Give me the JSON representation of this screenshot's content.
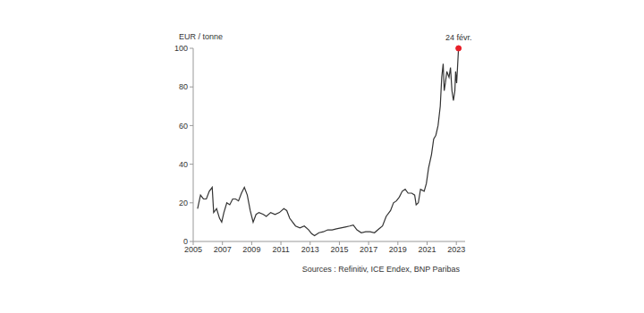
{
  "chart_data": {
    "type": "line",
    "y_label": "EUR / tonne",
    "source": "Sources : Refinitiv, ICE Endex, BNP Paribas",
    "color": "#333333",
    "grid": false,
    "xlim": [
      2005,
      2023.6
    ],
    "xticks": [
      2005,
      2007,
      2009,
      2011,
      2013,
      2015,
      2017,
      2019,
      2021,
      2023
    ],
    "ylim": [
      0,
      100
    ],
    "yticks": [
      0,
      20,
      40,
      60,
      80,
      100
    ],
    "x": [
      2005.3,
      2005.5,
      2005.7,
      2005.9,
      2006.1,
      2006.3,
      2006.4,
      2006.6,
      2006.8,
      2006.95,
      2007.1,
      2007.3,
      2007.5,
      2007.7,
      2007.9,
      2008.1,
      2008.3,
      2008.5,
      2008.7,
      2008.9,
      2009.1,
      2009.3,
      2009.5,
      2009.8,
      2010.0,
      2010.3,
      2010.6,
      2010.9,
      2011.2,
      2011.4,
      2011.6,
      2011.8,
      2012.0,
      2012.3,
      2012.6,
      2012.9,
      2013.1,
      2013.3,
      2013.6,
      2013.9,
      2014.2,
      2014.5,
      2014.8,
      2015.1,
      2015.4,
      2015.7,
      2015.95,
      2016.2,
      2016.5,
      2016.8,
      2017.1,
      2017.4,
      2017.7,
      2017.95,
      2018.2,
      2018.5,
      2018.7,
      2018.9,
      2019.1,
      2019.3,
      2019.5,
      2019.7,
      2019.95,
      2020.15,
      2020.25,
      2020.4,
      2020.55,
      2020.8,
      2020.95,
      2021.1,
      2021.3,
      2021.45,
      2021.6,
      2021.75,
      2021.9,
      2022.0,
      2022.1,
      2022.17,
      2022.25,
      2022.35,
      2022.5,
      2022.6,
      2022.7,
      2022.8,
      2022.9,
      2022.95,
      2023.02,
      2023.08,
      2023.15
    ],
    "values": [
      17,
      24,
      22,
      22,
      26,
      28,
      15,
      17,
      12,
      10,
      15,
      20,
      19,
      22,
      22,
      21,
      25,
      28,
      24,
      16,
      10,
      14,
      15,
      14,
      13,
      15,
      14,
      15,
      17,
      16,
      12,
      10,
      8,
      7,
      8,
      6,
      4,
      3,
      4.5,
      5,
      6,
      6,
      6.5,
      7,
      7.5,
      8,
      8.5,
      6,
      4.5,
      5,
      5,
      4.5,
      6.5,
      8,
      13,
      16,
      20,
      21,
      23,
      26,
      27,
      25,
      25,
      24,
      19,
      20,
      27,
      26,
      30,
      38,
      45,
      53,
      55,
      60,
      70,
      85,
      92,
      78,
      82,
      88,
      85,
      90,
      78,
      73,
      78,
      88,
      82,
      90,
      100
    ],
    "annotation": {
      "text": "24 févr.",
      "x": 2023.15,
      "y": 100,
      "color": "#e8202a"
    }
  }
}
